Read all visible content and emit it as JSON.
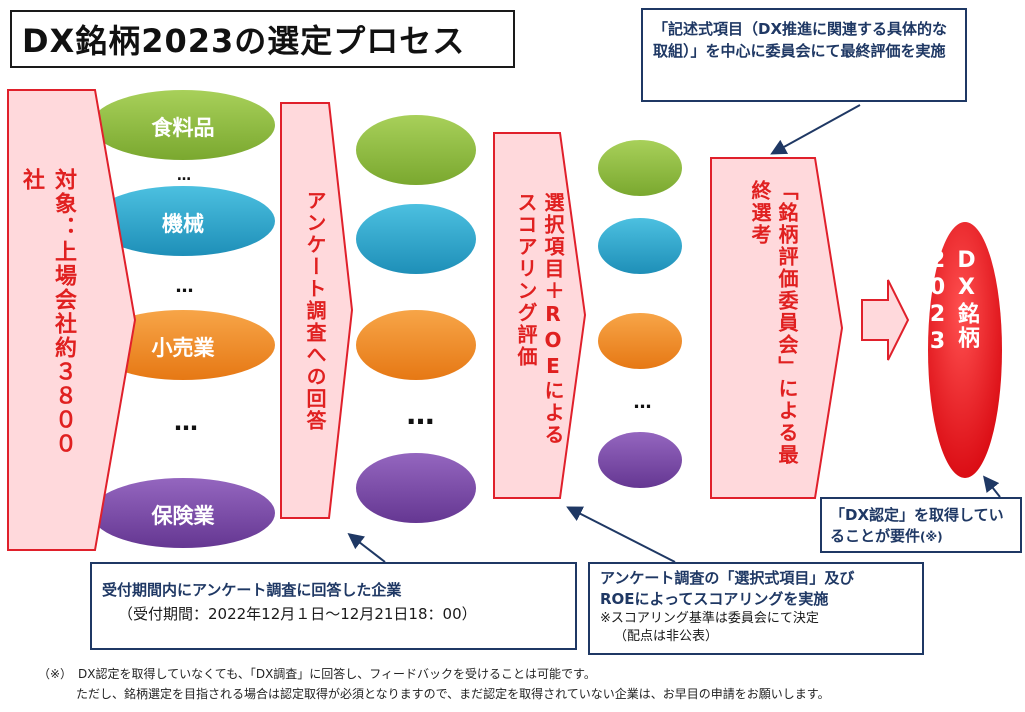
{
  "title": "DX銘柄2023の選定プロセス",
  "arrow_target": "対象：上場会社約３８００社",
  "arrow_survey": "アンケート調査への回答",
  "arrow_scoring": "選択項目＋ROEによるスコアリング評価",
  "arrow_committee": "「銘柄評価委員会」による最終選考",
  "result": "DX銘柄2023",
  "industries": {
    "food": "食料品",
    "machinery": "機械",
    "retail": "小売業",
    "insurance": "保険業"
  },
  "ellipsis": "…",
  "note_top": "「記述式項目（DX推進に関連する具体的な取組）」を中心に委員会にて最終評価を実施",
  "note_requirement_main": "「DX認定」を取得していることが要件",
  "note_requirement_mark": "(※)",
  "note_survey_line1": "受付期間内にアンケート調査に回答した企業",
  "note_survey_line2": "（受付期間：2022年12月１日～12月21日18：00）",
  "note_scoring_line1": "アンケート調査の「選択式項目」及び",
  "note_scoring_line2": "ROEによってスコアリングを実施",
  "note_scoring_line3": "※スコアリング基準は委員会にて決定",
  "note_scoring_line4": "（配点は非公表）",
  "footnote_line1": "（※）　DX認定を取得していなくても、「DX調査」に回答し、フィードバックを受けることは可能です。",
  "footnote_line2": "ただし、銘柄選定を目指される場合は認定取得が必須となりますので、まだ認定を取得されていない企業は、お早目の申請をお願いします。",
  "colors": {
    "arrow_fill": "#ffd9dc",
    "arrow_stroke": "#e0202b",
    "text_red": "#e02020",
    "green": "#8ab83e",
    "blue": "#2ba6cc",
    "orange": "#ef8a24",
    "purple": "#7a4aa3",
    "navy": "#1f3864",
    "result_red": "#e8141c"
  }
}
